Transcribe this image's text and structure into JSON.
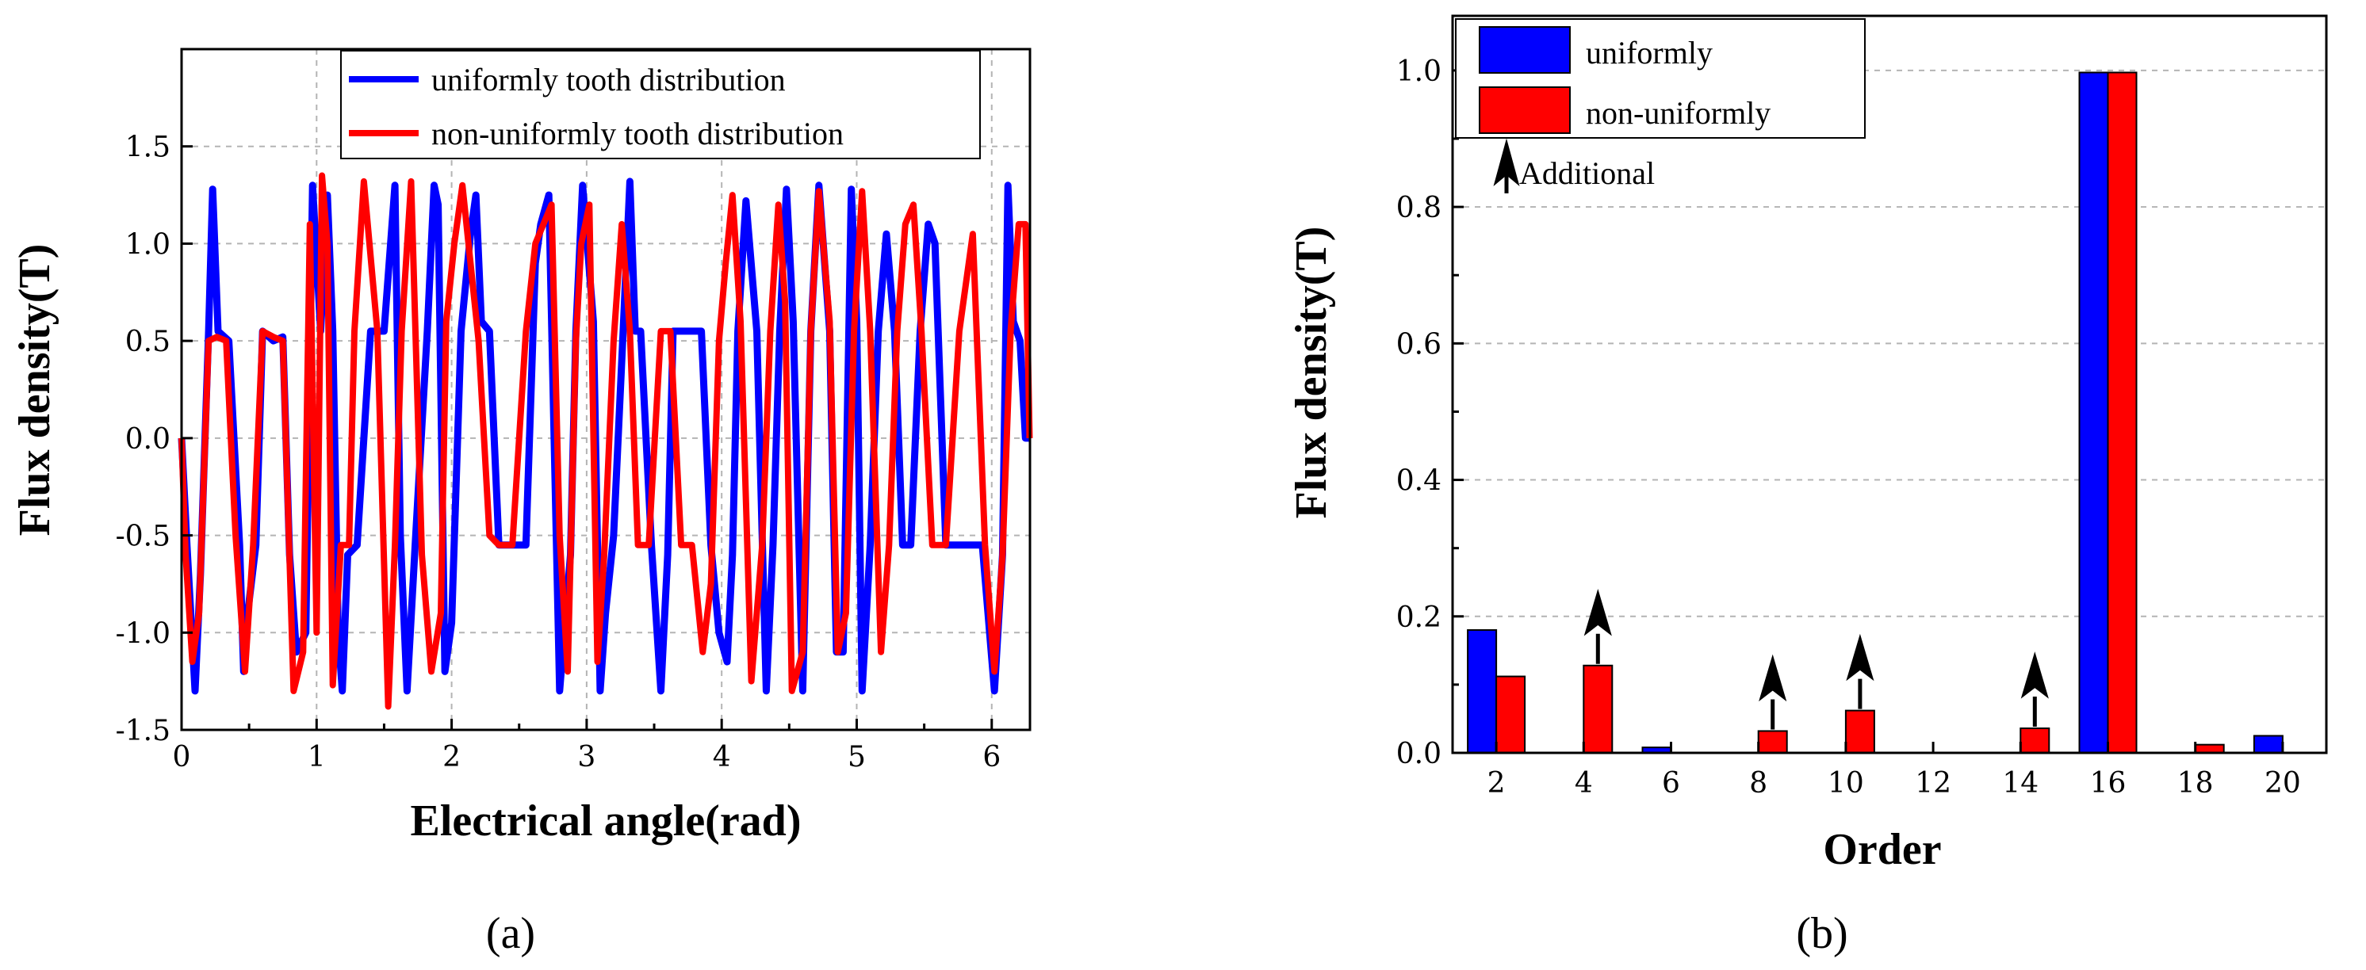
{
  "chart_data": [
    {
      "type": "line",
      "panel_label": "(a)",
      "xlabel": "Electrical angle(rad)",
      "ylabel": "Flux density(T)",
      "xlim": [
        0,
        6.2832
      ],
      "ylim": [
        -1.5,
        2.0
      ],
      "xticks": [
        0,
        1,
        2,
        3,
        4,
        5,
        6
      ],
      "yticks": [
        -1.5,
        -1.0,
        -0.5,
        0.0,
        0.5,
        1.0,
        1.5
      ],
      "ytick_labels": [
        "-1.5",
        "-1.0",
        "-0.5",
        "0.0",
        "0.5",
        "1.0",
        "1.5"
      ],
      "grid": true,
      "legend_position": "top-right",
      "series": [
        {
          "name": "uniformly tooth distribution",
          "color": "#0000ff",
          "x": [
            0,
            0.04,
            0.1,
            0.14,
            0.2,
            0.23,
            0.27,
            0.35,
            0.43,
            0.46,
            0.49,
            0.55,
            0.6,
            0.68,
            0.75,
            0.8,
            0.85,
            0.92,
            0.97,
            1.03,
            1.08,
            1.12,
            1.16,
            1.19,
            1.23,
            1.3,
            1.4,
            1.5,
            1.58,
            1.62,
            1.67,
            1.73,
            1.82,
            1.87,
            1.9,
            1.95,
            2.0,
            2.07,
            2.14,
            2.18,
            2.22,
            2.28,
            2.35,
            2.45,
            2.55,
            2.62,
            2.66,
            2.72,
            2.8,
            2.88,
            2.92,
            2.97,
            3.05,
            3.1,
            3.14,
            3.2,
            3.27,
            3.32,
            3.36,
            3.4,
            3.48,
            3.55,
            3.6,
            3.64,
            3.7,
            3.78,
            3.85,
            3.92,
            3.98,
            4.04,
            4.08,
            4.12,
            4.18,
            4.26,
            4.33,
            4.38,
            4.43,
            4.48,
            4.53,
            4.6,
            4.66,
            4.72,
            4.8,
            4.85,
            4.9,
            4.96,
            5.0,
            5.04,
            5.1,
            5.16,
            5.22,
            5.28,
            5.34,
            5.4,
            5.47,
            5.53,
            5.58,
            5.66,
            5.75,
            5.84,
            5.93,
            6.02,
            6.08,
            6.12,
            6.16,
            6.21,
            6.25,
            6.28
          ],
          "y": [
            0,
            -0.55,
            -1.3,
            -0.7,
            0.55,
            1.28,
            0.55,
            0.5,
            -0.55,
            -1.2,
            -0.9,
            -0.55,
            0.55,
            0.5,
            0.52,
            -0.6,
            -1.1,
            -1.0,
            1.3,
            0.55,
            1.25,
            0.55,
            -1.0,
            -1.3,
            -0.6,
            -0.55,
            0.55,
            0.55,
            1.3,
            -0.5,
            -1.3,
            -0.55,
            0.55,
            1.3,
            1.2,
            -1.2,
            -0.95,
            0.55,
            1.05,
            1.25,
            0.6,
            0.55,
            -0.55,
            -0.55,
            -0.55,
            0.9,
            1.1,
            1.25,
            -1.3,
            -0.6,
            0.55,
            1.3,
            0.6,
            -1.3,
            -0.9,
            -0.5,
            0.55,
            1.32,
            0.55,
            0.55,
            -0.55,
            -1.3,
            -0.6,
            0.55,
            0.55,
            0.55,
            0.55,
            -0.55,
            -1.0,
            -1.15,
            -0.6,
            0.55,
            1.22,
            0.55,
            -1.3,
            -0.55,
            0.55,
            1.28,
            0.6,
            -1.3,
            0.55,
            1.3,
            0.55,
            -1.1,
            -1.1,
            1.28,
            0.6,
            -1.3,
            -0.55,
            0.55,
            1.05,
            0.55,
            -0.55,
            -0.55,
            0.55,
            1.1,
            1.0,
            -0.55,
            -0.55,
            -0.55,
            -0.55,
            -1.3,
            -0.6,
            1.3,
            0.6,
            0.5,
            0.0,
            0.0
          ]
        },
        {
          "name": "non-uniformly tooth distribution",
          "color": "#ff0000",
          "x": [
            0,
            0.03,
            0.08,
            0.13,
            0.2,
            0.26,
            0.33,
            0.4,
            0.47,
            0.53,
            0.6,
            0.68,
            0.75,
            0.83,
            0.9,
            0.95,
            1.0,
            1.04,
            1.08,
            1.12,
            1.18,
            1.24,
            1.28,
            1.35,
            1.45,
            1.53,
            1.58,
            1.63,
            1.7,
            1.78,
            1.85,
            1.92,
            1.96,
            2.02,
            2.08,
            2.14,
            2.2,
            2.28,
            2.35,
            2.45,
            2.55,
            2.62,
            2.68,
            2.74,
            2.8,
            2.86,
            2.92,
            2.96,
            3.02,
            3.08,
            3.13,
            3.2,
            3.26,
            3.32,
            3.38,
            3.46,
            3.55,
            3.62,
            3.7,
            3.78,
            3.86,
            3.92,
            3.98,
            4.03,
            4.08,
            4.14,
            4.22,
            4.3,
            4.36,
            4.42,
            4.47,
            4.52,
            4.6,
            4.66,
            4.72,
            4.8,
            4.86,
            4.92,
            4.98,
            5.04,
            5.1,
            5.18,
            5.24,
            5.3,
            5.36,
            5.42,
            5.48,
            5.56,
            5.66,
            5.76,
            5.86,
            5.95,
            6.02,
            6.08,
            6.14,
            6.2,
            6.25,
            6.28
          ],
          "y": [
            0,
            -0.6,
            -1.15,
            -0.9,
            0.5,
            0.52,
            0.5,
            -0.5,
            -1.2,
            -0.55,
            0.55,
            0.52,
            0.5,
            -1.3,
            -1.1,
            1.1,
            -1.0,
            1.35,
            1.0,
            -1.27,
            -0.55,
            -0.55,
            0.55,
            1.32,
            0.55,
            -1.38,
            -0.55,
            0.55,
            1.32,
            -0.6,
            -1.2,
            -0.9,
            0.6,
            1.0,
            1.3,
            0.9,
            0.5,
            -0.5,
            -0.55,
            -0.55,
            0.55,
            1.0,
            1.1,
            1.2,
            -0.5,
            -1.2,
            0.5,
            1.0,
            1.2,
            -1.15,
            -0.6,
            0.5,
            1.1,
            0.55,
            -0.55,
            -0.55,
            0.55,
            0.55,
            -0.55,
            -0.55,
            -1.1,
            -0.75,
            0.5,
            0.9,
            1.25,
            0.6,
            -1.25,
            -0.55,
            0.55,
            1.2,
            0.7,
            -1.3,
            -1.1,
            0.55,
            1.27,
            0.6,
            -1.1,
            -0.9,
            0.55,
            1.27,
            0.55,
            -1.1,
            -0.55,
            0.55,
            1.1,
            1.2,
            0.55,
            -0.55,
            -0.55,
            0.55,
            1.05,
            -0.55,
            -1.2,
            -0.6,
            0.55,
            1.1,
            1.1,
            0.0
          ]
        }
      ]
    },
    {
      "type": "bar",
      "panel_label": "(b)",
      "xlabel": "Order",
      "ylabel": "Flux density(T)",
      "categories": [
        "2",
        "4",
        "6",
        "8",
        "10",
        "12",
        "14",
        "16",
        "18",
        "20"
      ],
      "ylim": [
        0,
        1.08
      ],
      "yticks": [
        0,
        0.2,
        0.4,
        0.6,
        0.8,
        1.0
      ],
      "ytick_labels": [
        "0.0",
        "0.2",
        "0.4",
        "0.6",
        "0.8",
        "1.0"
      ],
      "grid": true,
      "legend_position": "top-left",
      "series": [
        {
          "name": "uniformly",
          "color": "#0000ff",
          "values": [
            0.18,
            0,
            0.008,
            0,
            0,
            0,
            0,
            0.997,
            0,
            0.025
          ]
        },
        {
          "name": "non-uniformly",
          "color": "#ff0000",
          "values": [
            0.112,
            0.128,
            0,
            0.032,
            0.062,
            0,
            0.036,
            0.997,
            0.012,
            0
          ]
        }
      ],
      "annotation_label": "Additional",
      "additional_orders": [
        "4",
        "8",
        "10",
        "14"
      ]
    }
  ]
}
